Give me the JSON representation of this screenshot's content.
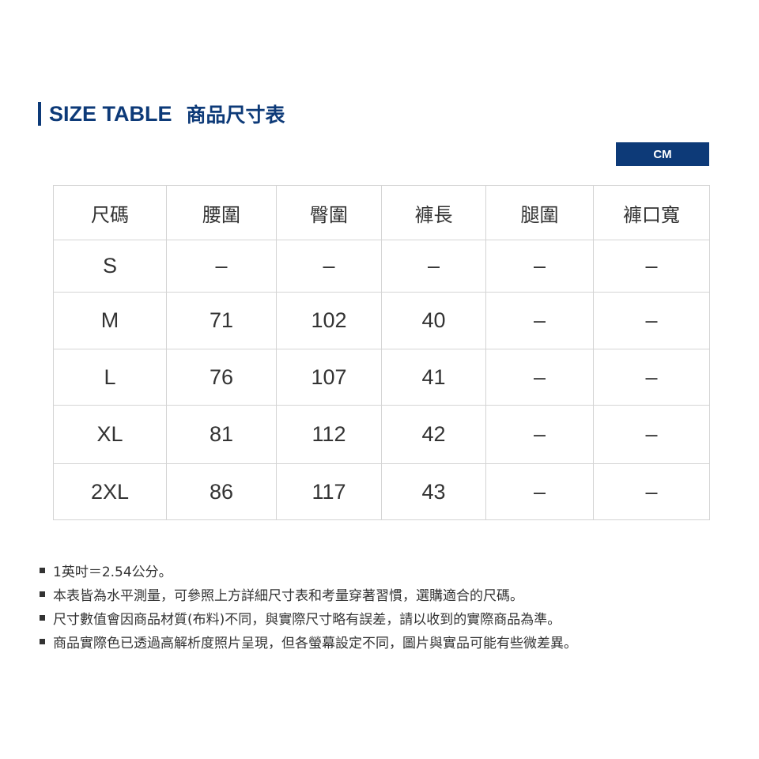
{
  "title": {
    "en": "SIZE TABLE",
    "zh": "商品尺寸表"
  },
  "unit": "CM",
  "table": {
    "headers": [
      "尺碼",
      "腰圍",
      "臀圍",
      "褲長",
      "腿圍",
      "褲口寬"
    ],
    "rows": [
      [
        "S",
        "–",
        "–",
        "–",
        "–",
        "–"
      ],
      [
        "M",
        "71",
        "102",
        "40",
        "–",
        "–"
      ],
      [
        "L",
        "76",
        "107",
        "41",
        "–",
        "–"
      ],
      [
        "XL",
        "81",
        "112",
        "42",
        "–",
        "–"
      ],
      [
        "2XL",
        "86",
        "117",
        "43",
        "–",
        "–"
      ]
    ]
  },
  "notes": [
    "1英吋＝2.54公分。",
    "本表皆為水平測量，可參照上方詳細尺寸表和考量穿著習慣，選購適合的尺碼。",
    "尺寸數值會因商品材質(布料)不同，與實際尺寸略有誤差，請以收到的實際商品為準。",
    "商品實際色已透過高解析度照片呈現，但各螢幕設定不同，圖片與實品可能有些微差異。"
  ],
  "colors": {
    "accent": "#0d3a78",
    "border": "#d4d4d4",
    "text": "#333333"
  }
}
